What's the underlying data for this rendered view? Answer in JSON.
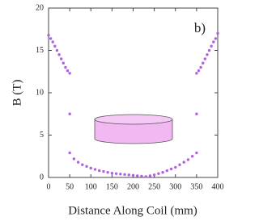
{
  "chart_data": {
    "type": "scatter",
    "annotation": "b)",
    "xlabel": "Distance Along Coil (mm)",
    "ylabel": "B (T)",
    "color": "#b060e0",
    "xlim": [
      0,
      400
    ],
    "ylim": [
      0,
      20
    ],
    "xticks": [
      0,
      50,
      100,
      150,
      200,
      250,
      300,
      350,
      400
    ],
    "yticks": [
      0,
      5,
      10,
      15,
      20
    ],
    "x": [
      0,
      5,
      10,
      15,
      20,
      25,
      30,
      35,
      40,
      45,
      50,
      50,
      50,
      60,
      70,
      80,
      90,
      100,
      110,
      120,
      130,
      140,
      150,
      160,
      170,
      180,
      190,
      200,
      210,
      220,
      230,
      240,
      250,
      260,
      270,
      280,
      290,
      300,
      310,
      320,
      330,
      340,
      350,
      350,
      350,
      355,
      360,
      365,
      370,
      375,
      380,
      385,
      390,
      395,
      400
    ],
    "values": [
      16.8,
      16.4,
      16.0,
      15.5,
      15.0,
      14.5,
      14.0,
      13.5,
      13.0,
      12.6,
      12.3,
      7.5,
      2.9,
      2.2,
      1.8,
      1.5,
      1.3,
      1.1,
      0.95,
      0.8,
      0.7,
      0.6,
      0.5,
      0.45,
      0.4,
      0.35,
      0.3,
      0.25,
      0.2,
      0.15,
      0.1,
      0.2,
      0.3,
      0.45,
      0.6,
      0.8,
      1.0,
      1.2,
      1.5,
      1.8,
      2.1,
      2.5,
      2.9,
      7.5,
      12.3,
      12.6,
      13.0,
      13.5,
      14.0,
      14.5,
      15.0,
      15.5,
      16.0,
      16.4,
      17.0
    ]
  }
}
